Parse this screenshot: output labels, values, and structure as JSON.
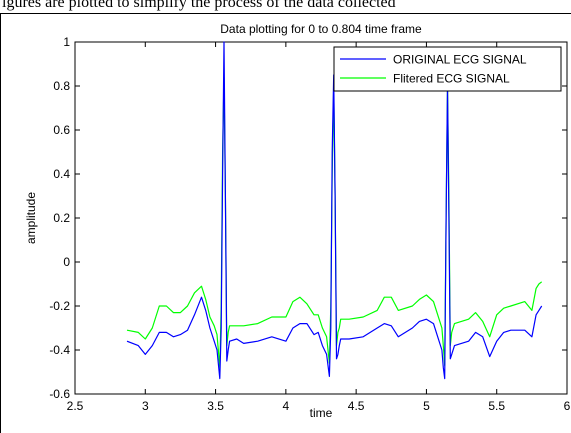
{
  "caption": "igures are plotted to simplify the process of the data collected",
  "chart_data": {
    "type": "line",
    "title": "Data plotting for 0 to 0.804 time frame",
    "xlabel": "time",
    "ylabel": "amplitude",
    "xlim": [
      2.5,
      6
    ],
    "ylim": [
      -0.6,
      1
    ],
    "xticks": [
      "2.5",
      "3",
      "3.5",
      "4",
      "4.5",
      "5",
      "5.5",
      "6"
    ],
    "yticks": [
      "-0.6",
      "-0.4",
      "-0.2",
      "0",
      "0.2",
      "0.4",
      "0.6",
      "0.8",
      "1"
    ],
    "grid": false,
    "legend_position": "top-right",
    "series": [
      {
        "name": "ORIGINAL ECG SIGNAL",
        "color": "#0000ff",
        "x": [
          2.87,
          2.95,
          3.0,
          3.05,
          3.1,
          3.15,
          3.2,
          3.25,
          3.3,
          3.35,
          3.4,
          3.43,
          3.46,
          3.49,
          3.51,
          3.53,
          3.54,
          3.55,
          3.56,
          3.57,
          3.58,
          3.59,
          3.6,
          3.65,
          3.7,
          3.8,
          3.9,
          4.0,
          4.05,
          4.1,
          4.15,
          4.2,
          4.23,
          4.26,
          4.29,
          4.31,
          4.32,
          4.33,
          4.34,
          4.35,
          4.36,
          4.37,
          4.38,
          4.39,
          4.45,
          4.55,
          4.65,
          4.7,
          4.75,
          4.8,
          4.9,
          4.95,
          5.0,
          5.05,
          5.08,
          5.11,
          5.12,
          5.13,
          5.14,
          5.15,
          5.16,
          5.17,
          5.18,
          5.2,
          5.3,
          5.35,
          5.4,
          5.45,
          5.5,
          5.55,
          5.6,
          5.7,
          5.75,
          5.78,
          5.8,
          5.82
        ],
        "y": [
          -0.36,
          -0.38,
          -0.42,
          -0.38,
          -0.32,
          -0.32,
          -0.34,
          -0.33,
          -0.31,
          -0.24,
          -0.16,
          -0.22,
          -0.3,
          -0.36,
          -0.4,
          -0.53,
          -0.3,
          0.4,
          1.0,
          0.3,
          -0.45,
          -0.4,
          -0.36,
          -0.35,
          -0.37,
          -0.36,
          -0.34,
          -0.36,
          -0.3,
          -0.28,
          -0.28,
          -0.33,
          -0.32,
          -0.38,
          -0.42,
          -0.52,
          -0.3,
          0.5,
          0.85,
          0.3,
          -0.44,
          -0.42,
          -0.38,
          -0.35,
          -0.35,
          -0.34,
          -0.3,
          -0.28,
          -0.29,
          -0.34,
          -0.3,
          -0.27,
          -0.26,
          -0.28,
          -0.34,
          -0.4,
          -0.48,
          -0.53,
          0.2,
          0.8,
          0.2,
          -0.44,
          -0.42,
          -0.38,
          -0.36,
          -0.32,
          -0.34,
          -0.43,
          -0.36,
          -0.32,
          -0.31,
          -0.31,
          -0.34,
          -0.24,
          -0.22,
          -0.2
        ]
      },
      {
        "name": "Flitered ECG SIGNAL",
        "color": "#00ff00",
        "x": [
          2.87,
          2.95,
          3.0,
          3.05,
          3.1,
          3.15,
          3.2,
          3.25,
          3.3,
          3.35,
          3.4,
          3.43,
          3.46,
          3.49,
          3.51,
          3.53,
          3.54,
          3.55,
          3.56,
          3.57,
          3.58,
          3.59,
          3.6,
          3.65,
          3.7,
          3.8,
          3.9,
          4.0,
          4.05,
          4.1,
          4.15,
          4.2,
          4.23,
          4.26,
          4.29,
          4.31,
          4.32,
          4.33,
          4.34,
          4.35,
          4.36,
          4.37,
          4.38,
          4.39,
          4.45,
          4.55,
          4.65,
          4.7,
          4.75,
          4.8,
          4.9,
          4.95,
          5.0,
          5.05,
          5.08,
          5.11,
          5.12,
          5.13,
          5.14,
          5.15,
          5.16,
          5.17,
          5.18,
          5.2,
          5.3,
          5.35,
          5.4,
          5.45,
          5.5,
          5.55,
          5.6,
          5.7,
          5.75,
          5.78,
          5.8,
          5.82
        ],
        "y": [
          -0.31,
          -0.32,
          -0.35,
          -0.3,
          -0.2,
          -0.2,
          -0.23,
          -0.23,
          -0.2,
          -0.14,
          -0.11,
          -0.17,
          -0.25,
          -0.29,
          -0.33,
          -0.48,
          -0.2,
          0.5,
          0.84,
          0.3,
          -0.38,
          -0.32,
          -0.29,
          -0.29,
          -0.29,
          -0.28,
          -0.25,
          -0.25,
          -0.18,
          -0.16,
          -0.19,
          -0.24,
          -0.24,
          -0.3,
          -0.34,
          -0.46,
          -0.2,
          0.4,
          0.8,
          0.3,
          -0.38,
          -0.32,
          -0.3,
          -0.26,
          -0.26,
          -0.25,
          -0.22,
          -0.16,
          -0.16,
          -0.22,
          -0.2,
          -0.17,
          -0.15,
          -0.18,
          -0.24,
          -0.3,
          -0.38,
          -0.47,
          0.2,
          0.8,
          0.3,
          -0.38,
          -0.32,
          -0.28,
          -0.26,
          -0.23,
          -0.27,
          -0.34,
          -0.24,
          -0.21,
          -0.2,
          -0.18,
          -0.22,
          -0.12,
          -0.1,
          -0.09
        ]
      }
    ]
  }
}
